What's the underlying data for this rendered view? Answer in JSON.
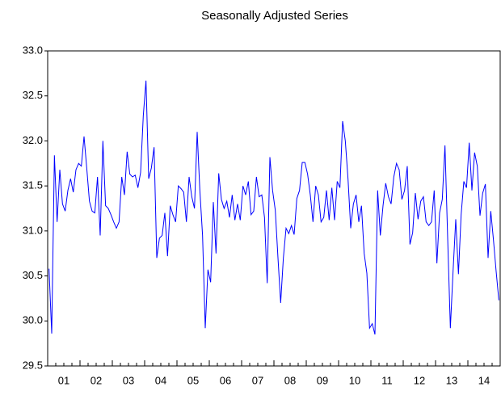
{
  "chart_data": {
    "type": "line",
    "title": "Seasonally Adjusted Series",
    "categories": [
      null,
      null,
      null,
      null,
      null,
      "01",
      null,
      null,
      null,
      null,
      null,
      null,
      null,
      null,
      null,
      null,
      null,
      "02",
      null,
      null,
      null,
      null,
      null,
      null,
      null,
      null,
      null,
      null,
      null,
      "03",
      null,
      null,
      null,
      null,
      null,
      null,
      null,
      null,
      null,
      null,
      null,
      "04",
      null,
      null,
      null,
      null,
      null,
      null,
      null,
      null,
      null,
      null,
      null,
      "05",
      null,
      null,
      null,
      null,
      null,
      null,
      null,
      null,
      null,
      null,
      null,
      "06",
      null,
      null,
      null,
      null,
      null,
      null,
      null,
      null,
      null,
      null,
      null,
      "07",
      null,
      null,
      null,
      null,
      null,
      null,
      null,
      null,
      null,
      null,
      null,
      "08",
      null,
      null,
      null,
      null,
      null,
      null,
      null,
      null,
      null,
      null,
      null,
      "09",
      null,
      null,
      null,
      null,
      null,
      null,
      null,
      null,
      null,
      null,
      null,
      "10",
      null,
      null,
      null,
      null,
      null,
      null,
      null,
      null,
      null,
      null,
      null,
      "11",
      null,
      null,
      null,
      null,
      null,
      null,
      null,
      null,
      null,
      null,
      null,
      "12",
      null,
      null,
      null,
      null,
      null,
      null,
      null,
      null,
      null,
      null,
      null,
      "13",
      null,
      null,
      null,
      null,
      null,
      null,
      null,
      null,
      null,
      null,
      null,
      "14",
      null,
      null,
      null,
      null,
      null,
      null
    ],
    "values": [
      30.58,
      29.86,
      31.84,
      31.1,
      31.68,
      31.3,
      31.22,
      31.45,
      31.58,
      31.43,
      31.68,
      31.75,
      31.72,
      32.05,
      31.7,
      31.33,
      31.22,
      31.2,
      31.6,
      30.95,
      32.0,
      31.28,
      31.25,
      31.18,
      31.1,
      31.03,
      31.1,
      31.6,
      31.4,
      31.88,
      31.63,
      31.6,
      31.62,
      31.48,
      31.65,
      32.28,
      32.67,
      31.58,
      31.7,
      31.93,
      30.7,
      30.92,
      30.95,
      31.2,
      30.72,
      31.28,
      31.18,
      31.1,
      31.5,
      31.47,
      31.43,
      31.1,
      31.6,
      31.38,
      31.25,
      32.1,
      31.45,
      30.95,
      29.92,
      30.57,
      30.43,
      31.32,
      30.75,
      31.64,
      31.35,
      31.25,
      31.33,
      31.15,
      31.4,
      31.12,
      31.3,
      31.12,
      31.5,
      31.4,
      31.55,
      31.18,
      31.22,
      31.6,
      31.38,
      31.4,
      31.15,
      30.42,
      31.82,
      31.45,
      31.23,
      30.7,
      30.2,
      30.7,
      31.03,
      30.97,
      31.06,
      30.96,
      31.36,
      31.45,
      31.76,
      31.76,
      31.63,
      31.4,
      31.1,
      31.5,
      31.4,
      31.1,
      31.15,
      31.45,
      31.12,
      31.48,
      31.12,
      31.55,
      31.48,
      32.22,
      32.0,
      31.58,
      31.03,
      31.3,
      31.4,
      31.1,
      31.28,
      30.75,
      30.53,
      29.92,
      29.97,
      29.85,
      31.45,
      30.95,
      31.28,
      31.53,
      31.38,
      31.3,
      31.6,
      31.75,
      31.68,
      31.35,
      31.45,
      31.72,
      30.85,
      30.98,
      31.42,
      31.13,
      31.33,
      31.38,
      31.1,
      31.06,
      31.1,
      31.45,
      30.64,
      31.2,
      31.35,
      31.95,
      30.92,
      29.92,
      30.55,
      31.13,
      30.52,
      31.18,
      31.55,
      31.48,
      31.98,
      31.45,
      31.87,
      31.72,
      31.17,
      31.42,
      31.52,
      30.7,
      31.22,
      30.9,
      30.55,
      30.23
    ],
    "color": "#0000ff",
    "ylim": [
      29.5,
      33.0
    ],
    "yticks": [
      29.5,
      {
        "value": 30.0,
        "label": "30.0"
      },
      30.5,
      {
        "value": 31.0,
        "label": "31.0"
      },
      31.5,
      {
        "value": 32.0,
        "label": "32.0"
      },
      32.5,
      {
        "value": 33.0,
        "label": "33.0"
      }
    ],
    "grid": false
  }
}
